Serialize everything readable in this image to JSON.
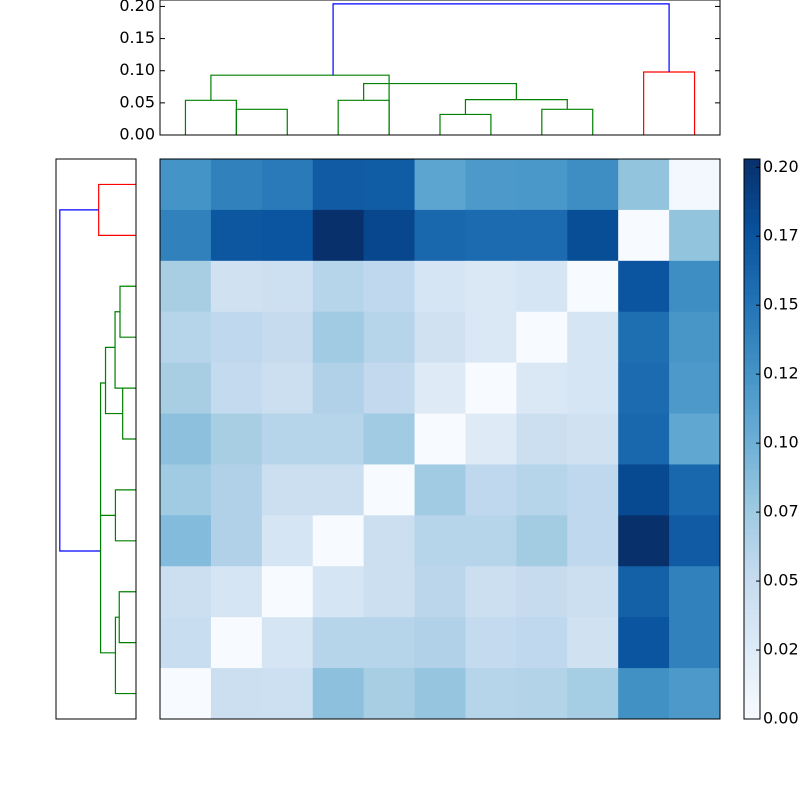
{
  "chart_data": {
    "type": "heatmap",
    "title": "",
    "xlabel": "",
    "ylabel": "",
    "grid": false,
    "colormap": "Blues",
    "colormap_stops": [
      "#f7fbff",
      "#deebf7",
      "#c6dbef",
      "#9ecae1",
      "#6baed6",
      "#4292c6",
      "#2171b5",
      "#08519c",
      "#08306b"
    ],
    "vmin": 0.0,
    "vmax": 0.203,
    "colorbar": {
      "ticks": [
        0.0,
        0.025,
        0.05,
        0.075,
        0.1,
        0.125,
        0.15,
        0.175,
        0.2
      ],
      "tick_labels": [
        "0.00",
        "0.02",
        "0.05",
        "0.07",
        "0.10",
        "0.12",
        "0.15",
        "0.17",
        "0.20"
      ]
    },
    "matrix": [
      [
        0.125,
        0.14,
        0.145,
        0.17,
        0.168,
        0.11,
        0.12,
        0.122,
        0.13,
        0.082,
        0.005
      ],
      [
        0.14,
        0.173,
        0.175,
        0.203,
        0.185,
        0.16,
        0.157,
        0.157,
        0.18,
        0.0,
        0.082
      ],
      [
        0.07,
        0.04,
        0.043,
        0.06,
        0.055,
        0.035,
        0.03,
        0.035,
        0.0,
        0.175,
        0.13
      ],
      [
        0.06,
        0.055,
        0.05,
        0.075,
        0.06,
        0.04,
        0.03,
        0.0,
        0.035,
        0.155,
        0.123
      ],
      [
        0.07,
        0.052,
        0.045,
        0.065,
        0.053,
        0.025,
        0.0,
        0.03,
        0.035,
        0.157,
        0.12
      ],
      [
        0.085,
        0.07,
        0.06,
        0.06,
        0.075,
        0.0,
        0.025,
        0.045,
        0.04,
        0.16,
        0.108
      ],
      [
        0.075,
        0.065,
        0.045,
        0.045,
        0.0,
        0.075,
        0.055,
        0.06,
        0.055,
        0.183,
        0.16
      ],
      [
        0.09,
        0.065,
        0.035,
        0.0,
        0.045,
        0.06,
        0.06,
        0.073,
        0.055,
        0.203,
        0.17
      ],
      [
        0.045,
        0.035,
        0.0,
        0.035,
        0.045,
        0.058,
        0.045,
        0.05,
        0.045,
        0.165,
        0.14
      ],
      [
        0.048,
        0.0,
        0.035,
        0.06,
        0.06,
        0.065,
        0.052,
        0.055,
        0.04,
        0.175,
        0.14
      ],
      [
        0.0,
        0.045,
        0.043,
        0.085,
        0.07,
        0.08,
        0.06,
        0.063,
        0.072,
        0.128,
        0.12
      ]
    ],
    "top_dendrogram": {
      "ylim": [
        0.0,
        0.21
      ],
      "yticks": [
        0.0,
        0.05,
        0.1,
        0.15,
        0.2
      ],
      "ytick_labels": [
        "0.00",
        "0.05",
        "0.10",
        "0.15",
        "0.20"
      ],
      "links": [
        {
          "x": [
            0.5,
            0.5,
            1.5,
            1.5
          ],
          "y": [
            0.0,
            0.054,
            0.054,
            0.0
          ],
          "color": "#008000"
        },
        {
          "x": [
            1.5,
            1.5,
            2.5,
            2.5
          ],
          "y": [
            0.0,
            0.04,
            0.04,
            0.0
          ],
          "color": "#008000"
        },
        {
          "x": [
            1.0,
            1.0,
            4.5,
            4.5
          ],
          "y": [
            0.054,
            0.093,
            0.093,
            0.0
          ],
          "color": "#008000"
        },
        {
          "x": [
            3.5,
            3.5,
            4.5,
            4.5
          ],
          "y": [
            0.0,
            0.054,
            0.054,
            0.0
          ],
          "color": "#008000"
        },
        {
          "x": [
            5.5,
            5.5,
            6.5,
            6.5
          ],
          "y": [
            0.0,
            0.032,
            0.032,
            0.0
          ],
          "color": "#008000"
        },
        {
          "x": [
            6.0,
            6.0,
            8.0,
            8.0
          ],
          "y": [
            0.032,
            0.055,
            0.055,
            0.04
          ],
          "color": "#008000"
        },
        {
          "x": [
            7.5,
            7.5,
            8.5,
            8.5
          ],
          "y": [
            0.0,
            0.04,
            0.04,
            0.0
          ],
          "color": "#008000"
        },
        {
          "x": [
            4.0,
            4.0,
            7.0,
            7.0
          ],
          "y": [
            0.054,
            0.08,
            0.08,
            0.055
          ],
          "color": "#008000"
        },
        {
          "x": [
            9.5,
            9.5,
            10.5,
            10.5
          ],
          "y": [
            0.0,
            0.098,
            0.098,
            0.0
          ],
          "color": "#ff0000"
        },
        {
          "x": [
            3.4,
            3.4,
            10.0,
            10.0
          ],
          "y": [
            0.093,
            0.204,
            0.204,
            0.098
          ],
          "color": "#0000ff"
        }
      ]
    },
    "left_dendrogram": {
      "links": [
        {
          "y": [
            0.5,
            0.5,
            1.5,
            1.5
          ],
          "x": [
            0.0,
            0.098,
            0.098,
            0.0
          ],
          "color": "#ff0000"
        },
        {
          "y": [
            1.0,
            1.0,
            7.7,
            7.7
          ],
          "x": [
            0.098,
            0.2,
            0.2,
            0.093
          ],
          "color": "#0000ff"
        },
        {
          "y": [
            2.5,
            2.5,
            3.5,
            3.5
          ],
          "x": [
            0.0,
            0.042,
            0.042,
            0.0
          ],
          "color": "#008000"
        },
        {
          "y": [
            3.0,
            3.0,
            4.5,
            4.5
          ],
          "x": [
            0.042,
            0.055,
            0.055,
            0.0
          ],
          "color": "#008000"
        },
        {
          "y": [
            3.7,
            3.7,
            5.0,
            5.0
          ],
          "x": [
            0.055,
            0.08,
            0.08,
            0.035
          ],
          "color": "#008000"
        },
        {
          "y": [
            4.5,
            4.5,
            5.5,
            5.5
          ],
          "x": [
            0.035,
            0.035,
            0.035,
            0.0
          ],
          "color": "#008000"
        },
        {
          "y": [
            6.5,
            6.5,
            7.5,
            7.5
          ],
          "x": [
            0.0,
            0.054,
            0.054,
            0.0
          ],
          "color": "#008000"
        },
        {
          "y": [
            4.4,
            4.4,
            7.0,
            7.0
          ],
          "x": [
            0.08,
            0.093,
            0.093,
            0.054
          ],
          "color": "#008000"
        },
        {
          "y": [
            8.5,
            8.5,
            9.5,
            9.5
          ],
          "x": [
            0.0,
            0.044,
            0.044,
            0.0
          ],
          "color": "#008000"
        },
        {
          "y": [
            9.0,
            9.0,
            10.5,
            10.5
          ],
          "x": [
            0.044,
            0.054,
            0.054,
            0.0
          ],
          "color": "#008000"
        },
        {
          "y": [
            7.0,
            7.0,
            9.7,
            9.7
          ],
          "x": [
            0.093,
            0.093,
            0.093,
            0.054
          ],
          "color": "#008000"
        }
      ]
    }
  }
}
